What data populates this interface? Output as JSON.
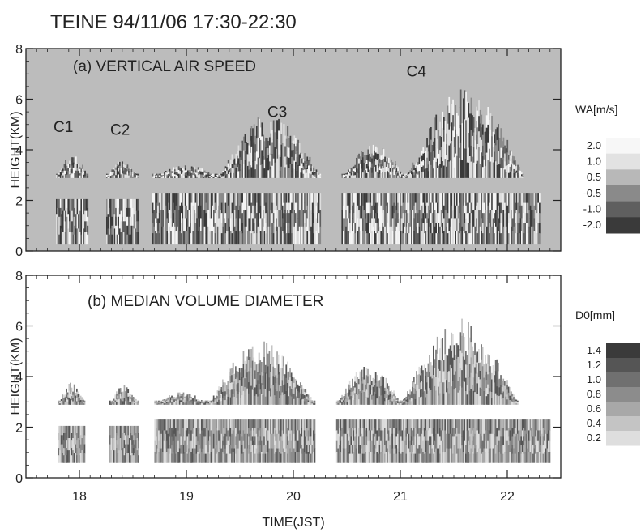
{
  "title": "TEINE 94/11/06 17:30-22:30",
  "chart_data": [
    {
      "type": "heatmap",
      "panel_label": "(a) VERTICAL AIR SPEED",
      "ylabel": "HEIGHT(KM)",
      "xlabel": "",
      "xlim": [
        17.5,
        22.5
      ],
      "ylim": [
        0,
        8
      ],
      "x_ticks": [
        "18",
        "19",
        "20",
        "21",
        "22"
      ],
      "y_ticks": [
        "0",
        "2",
        "4",
        "6",
        "8"
      ],
      "annotations": [
        {
          "text": "C1",
          "x": 17.85,
          "y": 4.7
        },
        {
          "text": "C2",
          "x": 18.38,
          "y": 4.6
        },
        {
          "text": "C3",
          "x": 19.85,
          "y": 5.3
        },
        {
          "text": "C4",
          "x": 21.15,
          "y": 6.9
        }
      ],
      "colorbar": {
        "title": "WA[m/s]",
        "levels": [
          "2.0",
          "1.0",
          "0.5",
          "-0.5",
          "-1.0",
          "-2.0"
        ],
        "colors": [
          "#f7f7f7",
          "#e2e2e2",
          "#b8b8b8",
          "#8a8a8a",
          "#5f5f5f",
          "#3a3a3a"
        ]
      },
      "background_color": "#bcbcbc",
      "echo_segments": [
        {
          "x0": 17.78,
          "x1": 18.08,
          "low": [
            0.3,
            2.05
          ],
          "high": [
            2.9,
            3.8
          ]
        },
        {
          "x0": 18.25,
          "x1": 18.55,
          "low": [
            0.3,
            2.05
          ],
          "high": [
            2.9,
            3.6
          ]
        },
        {
          "x0": 18.68,
          "x1": 19.3,
          "low": [
            0.3,
            2.3
          ],
          "high": [
            2.9,
            3.4
          ]
        },
        {
          "x0": 19.3,
          "x1": 20.25,
          "low": [
            0.3,
            2.3
          ],
          "high": [
            2.9,
            5.5
          ]
        },
        {
          "x0": 20.45,
          "x1": 21.05,
          "low": [
            0.3,
            2.3
          ],
          "high": [
            2.9,
            4.2
          ]
        },
        {
          "x0": 21.05,
          "x1": 22.15,
          "low": [
            0.3,
            2.3
          ],
          "high": [
            2.9,
            6.5
          ]
        },
        {
          "x0": 22.15,
          "x1": 22.3,
          "low": [
            0.3,
            2.3
          ],
          "high": null
        }
      ]
    },
    {
      "type": "heatmap",
      "panel_label": "(b) MEDIAN VOLUME DIAMETER",
      "ylabel": "HEIGHT(KM)",
      "xlabel": "TIME(JST)",
      "xlim": [
        17.5,
        22.5
      ],
      "ylim": [
        0,
        8
      ],
      "x_ticks": [
        "18",
        "19",
        "20",
        "21",
        "22"
      ],
      "y_ticks": [
        "0",
        "2",
        "4",
        "6",
        "8"
      ],
      "colorbar": {
        "title": "D0[mm]",
        "levels": [
          "1.4",
          "1.2",
          "1.0",
          "0.8",
          "0.6",
          "0.4",
          "0.2"
        ],
        "colors": [
          "#3a3a3a",
          "#555555",
          "#707070",
          "#8c8c8c",
          "#a8a8a8",
          "#c4c4c4",
          "#dedede"
        ]
      },
      "background_color": "#ffffff",
      "echo_segments": [
        {
          "x0": 17.8,
          "x1": 18.05,
          "low": [
            0.6,
            2.05
          ],
          "high": [
            2.9,
            3.8
          ]
        },
        {
          "x0": 18.28,
          "x1": 18.55,
          "low": [
            0.6,
            2.05
          ],
          "high": [
            2.9,
            3.7
          ]
        },
        {
          "x0": 18.7,
          "x1": 19.2,
          "low": [
            0.6,
            2.3
          ],
          "high": [
            2.9,
            3.4
          ]
        },
        {
          "x0": 19.2,
          "x1": 20.2,
          "low": [
            0.6,
            2.3
          ],
          "high": [
            2.9,
            5.4
          ]
        },
        {
          "x0": 20.4,
          "x1": 21.0,
          "low": [
            0.6,
            2.3
          ],
          "high": [
            2.9,
            4.5
          ]
        },
        {
          "x0": 21.0,
          "x1": 22.1,
          "low": [
            0.6,
            2.3
          ],
          "high": [
            2.9,
            6.3
          ]
        },
        {
          "x0": 22.1,
          "x1": 22.4,
          "low": [
            0.6,
            2.3
          ],
          "high": null
        }
      ]
    }
  ]
}
